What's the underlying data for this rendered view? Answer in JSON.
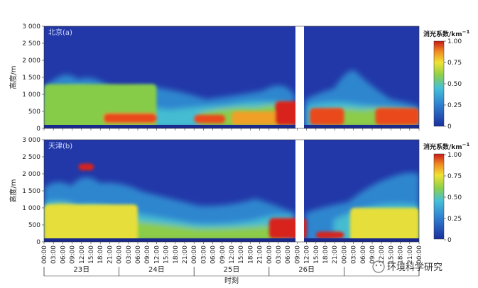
{
  "chart_data": [
    {
      "type": "heatmap",
      "panel_label": "北京(a)",
      "ylabel": "高度/m",
      "ylim": [
        0,
        3000
      ],
      "yticks": [
        "0",
        "500",
        "1 000",
        "1 500",
        "2 000",
        "2 500",
        "3 000"
      ],
      "colorbar": {
        "title": "消光系数/km",
        "title_sup": "−1",
        "range": [
          0,
          1.0
        ],
        "ticks": [
          "0",
          "0.25",
          "0.50",
          "0.75",
          "1.00"
        ]
      },
      "data_gap": {
        "start": "26日 10:30",
        "end": "26日 12:00"
      },
      "layers": [
        {
          "x_start_h": 0,
          "x_end_h": 36,
          "base_m": 0,
          "top_m": 1300,
          "value": 0.45
        },
        {
          "x_start_h": 19,
          "x_end_h": 36,
          "base_m": 150,
          "top_m": 450,
          "value": 0.9
        },
        {
          "x_start_h": 48,
          "x_end_h": 58,
          "base_m": 150,
          "top_m": 400,
          "value": 0.85
        },
        {
          "x_start_h": 60,
          "x_end_h": 80,
          "base_m": 100,
          "top_m": 500,
          "value": 0.8
        },
        {
          "x_start_h": 74,
          "x_end_h": 82,
          "base_m": 100,
          "top_m": 800,
          "value": 1.0
        },
        {
          "x_start_h": 85,
          "x_end_h": 96,
          "base_m": 100,
          "top_m": 600,
          "value": 0.85
        },
        {
          "x_start_h": 106,
          "x_end_h": 120,
          "base_m": 100,
          "top_m": 600,
          "value": 0.9
        }
      ]
    },
    {
      "type": "heatmap",
      "panel_label": "天津(b)",
      "ylabel": "高度/m",
      "ylim": [
        0,
        3000
      ],
      "yticks": [
        "0",
        "500",
        "1 000",
        "1 500",
        "2 000",
        "2 500",
        "3 000"
      ],
      "colorbar": {
        "title": "消光系数/km",
        "title_sup": "−1",
        "range": [
          0,
          1.0
        ],
        "ticks": [
          "0",
          "0.25",
          "0.50",
          "0.75",
          "1.00"
        ]
      },
      "data_gap": {
        "start": "26日 10:30",
        "end": "26日 12:00"
      },
      "layers": [
        {
          "x_start_h": 0,
          "x_end_h": 30,
          "base_m": 0,
          "top_m": 1100,
          "value": 0.55
        },
        {
          "x_start_h": 11,
          "x_end_h": 16,
          "base_m": 2100,
          "top_m": 2300,
          "value": 0.95
        },
        {
          "x_start_h": 72,
          "x_end_h": 84,
          "base_m": 100,
          "top_m": 700,
          "value": 1.0
        },
        {
          "x_start_h": 87,
          "x_end_h": 96,
          "base_m": 100,
          "top_m": 300,
          "value": 0.95
        },
        {
          "x_start_h": 98,
          "x_end_h": 120,
          "base_m": 0,
          "top_m": 1000,
          "value": 0.5
        }
      ]
    }
  ],
  "x_axis": {
    "xlabel": "时刻",
    "time_ticks": [
      "00:00",
      "03:00",
      "06:00",
      "09:00",
      "12:00",
      "15:00",
      "18:00",
      "21:00",
      "00:00",
      "03:00",
      "06:00",
      "09:00",
      "12:00",
      "15:00",
      "18:00",
      "21:00",
      "00:00",
      "03:00",
      "06:00",
      "09:00",
      "12:00",
      "15:00",
      "18:00",
      "21:00",
      "00:00",
      "03:00",
      "06:00",
      "09:00",
      "12:00",
      "15:00",
      "18:00",
      "21:00",
      "00:00",
      "03:00",
      "06:00",
      "09:00",
      "12:00",
      "15:00",
      "18:00",
      "21:00",
      "00:00"
    ],
    "days": [
      "23日",
      "24日",
      "25日",
      "26日"
    ]
  },
  "watermark": "环境科学研究",
  "colors": {
    "low": "#1d3fa8",
    "mid": "#3aa0d8",
    "green": "#7fc640",
    "yellow": "#e8e23a",
    "high": "#d8261c"
  }
}
